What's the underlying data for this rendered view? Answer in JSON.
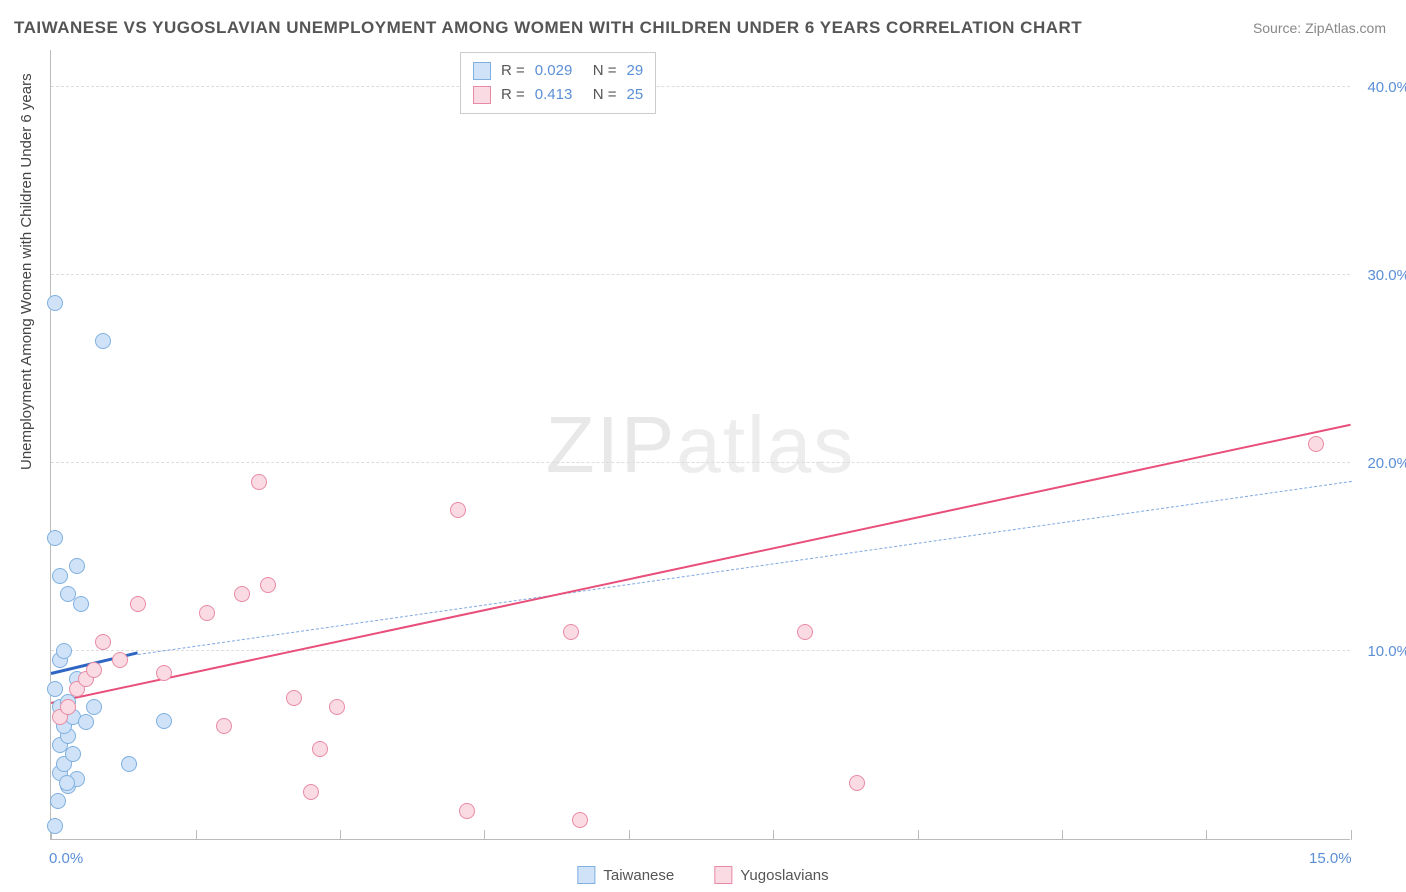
{
  "title": "TAIWANESE VS YUGOSLAVIAN UNEMPLOYMENT AMONG WOMEN WITH CHILDREN UNDER 6 YEARS CORRELATION CHART",
  "source_label": "Source:",
  "source_value": "ZipAtlas.com",
  "ylabel": "Unemployment Among Women with Children Under 6 years",
  "watermark_a": "ZIP",
  "watermark_b": "atlas",
  "chart": {
    "type": "scatter",
    "xlim": [
      0,
      15
    ],
    "ylim": [
      0,
      42
    ],
    "xticks": [
      0.0,
      1.67,
      3.33,
      5.0,
      6.67,
      8.33,
      10.0,
      11.67,
      13.33,
      15.0
    ],
    "xtick_labels": {
      "0": "0.0%",
      "15": "15.0%"
    },
    "yticks": [
      10.0,
      20.0,
      30.0,
      40.0
    ],
    "ytick_labels": [
      "10.0%",
      "20.0%",
      "30.0%",
      "40.0%"
    ],
    "grid_color": "#dddddd",
    "axis_color": "#bbbbbb",
    "background_color": "#ffffff",
    "series": [
      {
        "name": "Taiwanese",
        "color_fill": "#cfe2f7",
        "color_stroke": "#7fb0e0",
        "marker_radius": 8,
        "R": "0.029",
        "N": "29",
        "trend": {
          "x1": 0,
          "y1": 8.7,
          "x2": 1.0,
          "y2": 9.8,
          "style": "solid",
          "color": "#2f66c4",
          "width": 3
        },
        "trend_ext": {
          "x1": 1.0,
          "y1": 9.8,
          "x2": 15.0,
          "y2": 19.0,
          "style": "dashed",
          "color": "#7fa9e0",
          "width": 1.5
        },
        "points": [
          [
            0.05,
            0.7
          ],
          [
            0.1,
            3.5
          ],
          [
            0.15,
            4.0
          ],
          [
            0.2,
            2.8
          ],
          [
            0.1,
            5.0
          ],
          [
            0.2,
            5.5
          ],
          [
            0.3,
            3.2
          ],
          [
            0.15,
            6.0
          ],
          [
            0.25,
            6.5
          ],
          [
            0.1,
            7.0
          ],
          [
            0.2,
            7.3
          ],
          [
            0.05,
            8.0
          ],
          [
            0.3,
            8.5
          ],
          [
            0.1,
            9.5
          ],
          [
            0.15,
            10.0
          ],
          [
            0.4,
            6.2
          ],
          [
            0.5,
            7.0
          ],
          [
            0.9,
            4.0
          ],
          [
            1.3,
            6.3
          ],
          [
            0.35,
            12.5
          ],
          [
            0.2,
            13.0
          ],
          [
            0.1,
            14.0
          ],
          [
            0.3,
            14.5
          ],
          [
            0.05,
            16.0
          ],
          [
            0.6,
            26.5
          ],
          [
            0.05,
            28.5
          ],
          [
            0.25,
            4.5
          ],
          [
            0.18,
            3.0
          ],
          [
            0.08,
            2.0
          ]
        ]
      },
      {
        "name": "Yugoslavians",
        "color_fill": "#fadbe3",
        "color_stroke": "#e88aa5",
        "marker_radius": 8,
        "R": "0.413",
        "N": "25",
        "trend": {
          "x1": 0,
          "y1": 7.2,
          "x2": 15.0,
          "y2": 22.0,
          "style": "solid",
          "color": "#e84f7a",
          "width": 2.5
        },
        "points": [
          [
            0.1,
            6.5
          ],
          [
            0.2,
            7.0
          ],
          [
            0.3,
            8.0
          ],
          [
            0.4,
            8.5
          ],
          [
            0.5,
            9.0
          ],
          [
            0.6,
            10.5
          ],
          [
            0.8,
            9.5
          ],
          [
            1.0,
            12.5
          ],
          [
            1.3,
            8.8
          ],
          [
            1.8,
            12.0
          ],
          [
            2.0,
            6.0
          ],
          [
            2.2,
            13.0
          ],
          [
            2.4,
            19.0
          ],
          [
            2.5,
            13.5
          ],
          [
            2.8,
            7.5
          ],
          [
            3.0,
            2.5
          ],
          [
            3.1,
            4.8
          ],
          [
            3.3,
            7.0
          ],
          [
            4.7,
            17.5
          ],
          [
            4.8,
            1.5
          ],
          [
            6.0,
            11.0
          ],
          [
            6.1,
            1.0
          ],
          [
            8.7,
            11.0
          ],
          [
            9.3,
            3.0
          ],
          [
            14.6,
            21.0
          ]
        ]
      }
    ]
  },
  "legend_stats_prefix_R": "R =",
  "legend_stats_prefix_N": "N ="
}
